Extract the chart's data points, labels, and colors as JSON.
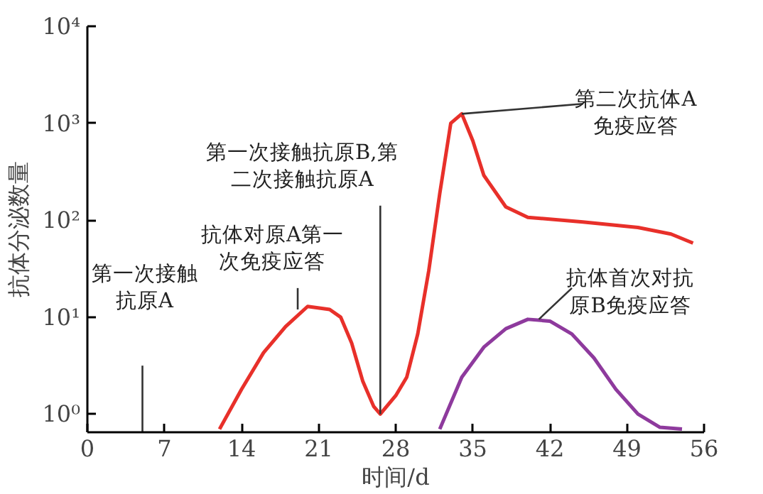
{
  "chart_data": {
    "type": "line",
    "xlabel": "时间/d",
    "ylabel": "抗体分泌数量",
    "log": "y",
    "grid": false,
    "marker": "none",
    "line_style": "solid",
    "xlim": [
      0,
      56
    ],
    "xticks": [
      0,
      7,
      14,
      21,
      28,
      35,
      42,
      49,
      56
    ],
    "ylim": [
      0.65,
      10000
    ],
    "yticks": [
      {
        "value": 1,
        "label": "10⁰"
      },
      {
        "value": 10,
        "label": "10¹"
      },
      {
        "value": 100,
        "label": "10²"
      },
      {
        "value": 1000,
        "label": "10³"
      },
      {
        "value": 10000,
        "label": "10⁴"
      }
    ],
    "series": [
      {
        "color": "#e8302a",
        "x": [
          12,
          14,
          16,
          18,
          20,
          22,
          23,
          24,
          25,
          26,
          26.6,
          28,
          29,
          30,
          31,
          32,
          33,
          34,
          35,
          36,
          38,
          40,
          45,
          50,
          53,
          55
        ],
        "values": [
          0.7,
          1.8,
          4.3,
          8,
          12.9,
          12,
          10,
          5.4,
          2.2,
          1.2,
          1.0,
          1.55,
          2.4,
          6.7,
          30,
          188,
          1000,
          1250,
          660,
          290,
          137,
          107,
          96,
          84,
          72,
          58
        ]
      },
      {
        "color": "#8e3a9d",
        "x": [
          32,
          34,
          36,
          38,
          40,
          42,
          44,
          46,
          48,
          50,
          52,
          54
        ],
        "values": [
          0.7,
          2.4,
          4.9,
          7.6,
          9.5,
          9.1,
          6.7,
          3.8,
          1.8,
          1.0,
          0.73,
          0.7
        ]
      }
    ],
    "annotations": [
      "第一次接触抗原A",
      {
        "text": "第一次接触抗原B,第二次接触抗原A",
        "x": 26.6,
        "y": 1.0
      },
      {
        "text": "抗体对原A第一次免疫应答",
        "x": 19.1,
        "y": 12
      },
      {
        "text": "第二次抗体A免疫应答",
        "x": 34,
        "y": 1250
      },
      {
        "text": "抗体首次对抗原B免疫应答",
        "x": 41,
        "y": 9.5
      }
    ],
    "ref_lines": [
      {
        "axis": "x",
        "value": 5
      }
    ]
  }
}
